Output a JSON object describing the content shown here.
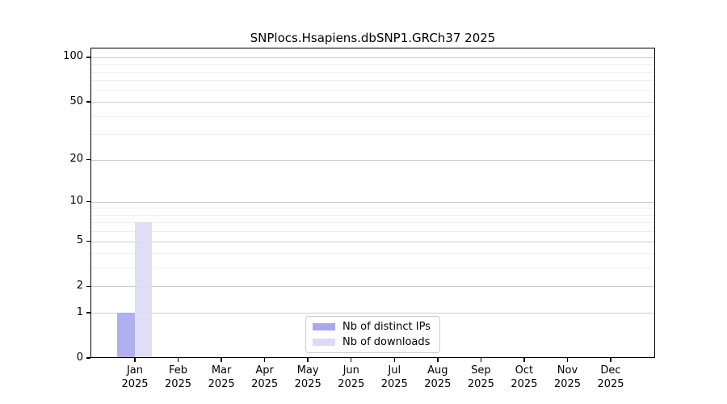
{
  "chart_data": {
    "type": "bar",
    "title": "SNPlocs.Hsapiens.dbSNP1.GRCh37 2025",
    "categories": [
      "Jan",
      "Feb",
      "Mar",
      "Apr",
      "May",
      "Jun",
      "Jul",
      "Aug",
      "Sep",
      "Oct",
      "Nov",
      "Dec"
    ],
    "category_sublabel": "2025",
    "series": [
      {
        "name": "Nb of distinct IPs",
        "color": "#a9a9ef",
        "values": [
          1,
          0,
          0,
          0,
          0,
          0,
          0,
          0,
          0,
          0,
          0,
          0
        ]
      },
      {
        "name": "Nb of downloads",
        "color": "#dbdbf8",
        "values": [
          7,
          0,
          0,
          0,
          0,
          0,
          0,
          0,
          0,
          0,
          0,
          0
        ]
      }
    ],
    "xlabel": "",
    "ylabel": "",
    "y_axis": {
      "scale": "log10(1+y)",
      "tick_values": [
        0,
        1,
        2,
        5,
        10,
        20,
        50,
        100
      ],
      "minor_grid_values": [
        3,
        4,
        6,
        7,
        8,
        9,
        30,
        40,
        60,
        70,
        80,
        90
      ],
      "ylim": [
        0,
        118
      ]
    },
    "grid": true,
    "legend_position": "bottom-center"
  },
  "colors": {
    "background": "#ffffff",
    "axis": "#000000",
    "major_grid": "#cdcdcd",
    "minor_grid": "#efefef",
    "legend_border": "#cccccc"
  }
}
